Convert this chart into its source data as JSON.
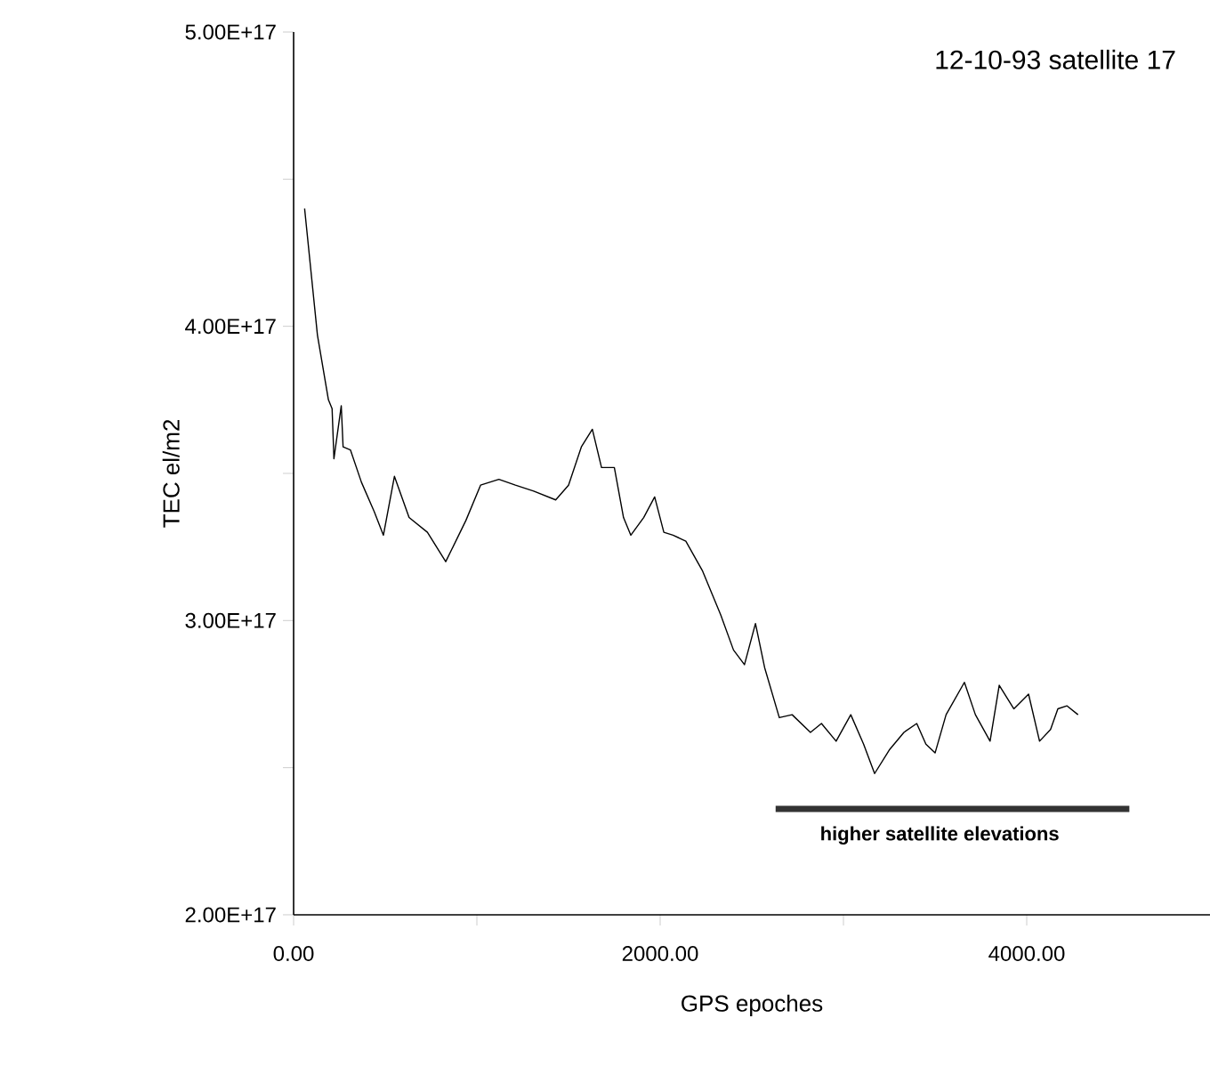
{
  "chart_data": {
    "type": "line",
    "title": "12-10-93 satellite 17",
    "xlabel": "GPS epoches",
    "ylabel": "TEC el/m2",
    "xlim": [
      0,
      5000
    ],
    "xticks": [
      {
        "value": 0,
        "label": "0.00"
      },
      {
        "value": 1000,
        "label": null
      },
      {
        "value": 2000,
        "label": "2000.00"
      },
      {
        "value": 3000,
        "label": null
      },
      {
        "value": 4000,
        "label": "4000.00"
      }
    ],
    "ylim": [
      2e+17,
      5e+17
    ],
    "yticks": [
      {
        "value": 2e+17,
        "label": "2.00E+17"
      },
      {
        "value": 2.5e+17,
        "label": null
      },
      {
        "value": 3e+17,
        "label": "3.00E+17"
      },
      {
        "value": 3.5e+17,
        "label": null
      },
      {
        "value": 4e+17,
        "label": "4.00E+17"
      },
      {
        "value": 4.5e+17,
        "label": null
      },
      {
        "value": 5e+17,
        "label": "5.00E+17"
      }
    ],
    "annotations": [
      "higher satellite elevations"
    ],
    "series": [
      {
        "color": "#000000",
        "x": [
          60,
          130,
          190,
          210,
          220,
          260,
          270,
          310,
          370,
          440,
          490,
          550,
          630,
          730,
          830,
          940,
          1020,
          1120,
          1210,
          1310,
          1430,
          1500,
          1570,
          1630,
          1680,
          1750,
          1800,
          1840,
          1910,
          1970,
          2020,
          2070,
          2140,
          2230,
          2330,
          2400,
          2460,
          2520,
          2570,
          2650,
          2720,
          2820,
          2880,
          2960,
          3040,
          3110,
          3170,
          3250,
          3330,
          3400,
          3450,
          3500,
          3560,
          3660,
          3720,
          3800,
          3850,
          3930,
          4010,
          4070,
          4130,
          4170,
          4220,
          4280
        ],
        "values": [
          4.4e+17,
          3.97e+17,
          3.75e+17,
          3.72e+17,
          3.55e+17,
          3.73e+17,
          3.59e+17,
          3.58e+17,
          3.47e+17,
          3.37e+17,
          3.29e+17,
          3.49e+17,
          3.35e+17,
          3.3e+17,
          3.2e+17,
          3.34e+17,
          3.46e+17,
          3.48e+17,
          3.46e+17,
          3.44e+17,
          3.41e+17,
          3.46e+17,
          3.59e+17,
          3.65e+17,
          3.52e+17,
          3.52e+17,
          3.35e+17,
          3.29e+17,
          3.35e+17,
          3.42e+17,
          3.3e+17,
          3.29e+17,
          3.27e+17,
          3.17e+17,
          3.02e+17,
          2.9e+17,
          2.85e+17,
          2.99e+17,
          2.84e+17,
          2.67e+17,
          2.68e+17,
          2.62e+17,
          2.65e+17,
          2.59e+17,
          2.68e+17,
          2.58e+17,
          2.48e+17,
          2.56e+17,
          2.62e+17,
          2.65e+17,
          2.58e+17,
          2.55e+17,
          2.68e+17,
          2.79e+17,
          2.68e+17,
          2.59e+17,
          2.78e+17,
          2.7e+17,
          2.75e+17,
          2.59e+17,
          2.63e+17,
          2.7e+17,
          2.71e+17,
          2.68e+17
        ]
      },
      {
        "color": "#333333",
        "x": [
          2630,
          4560
        ],
        "values": [
          2.36e+17,
          2.36e+17
        ]
      }
    ]
  }
}
